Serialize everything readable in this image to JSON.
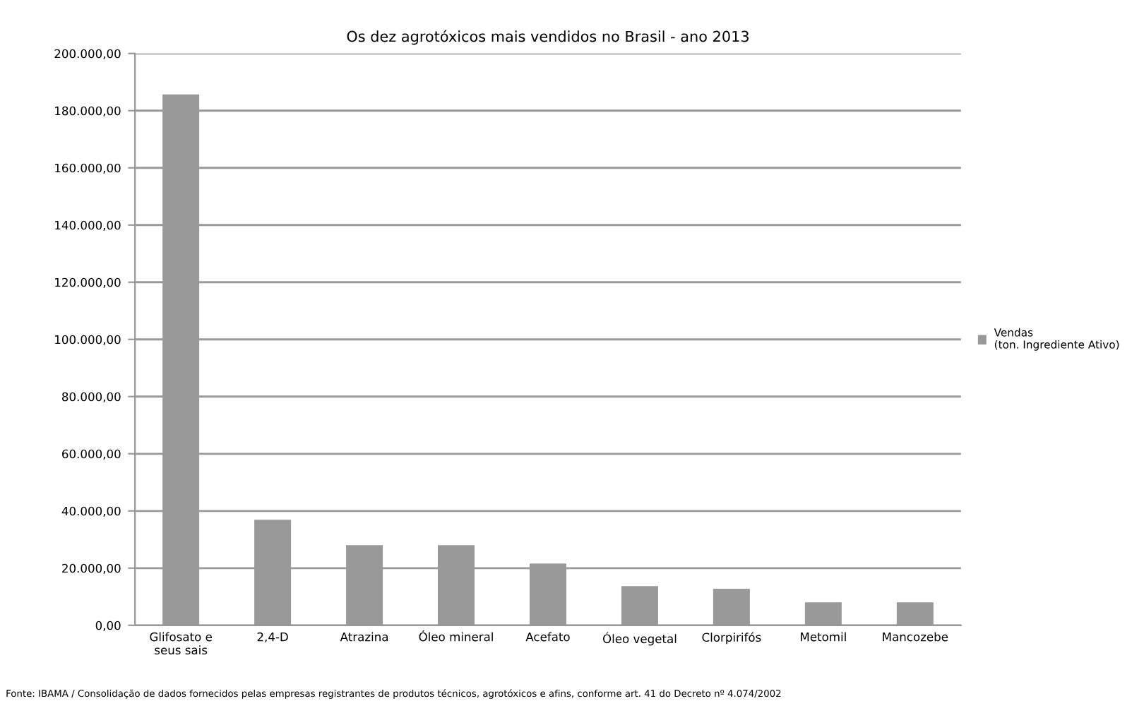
{
  "chart_data": {
    "type": "bar",
    "title": "Os dez agrotóxicos mais vendidos no Brasil - ano 2013",
    "categories": [
      "Glifosato e\nseus sais",
      "2,4-D",
      "Atrazina",
      "Óleo mineral",
      "Acefato",
      "Óleo vegetal",
      "Clorpirifós",
      "Metomil",
      "Mancozebe"
    ],
    "series": [
      {
        "name": "Vendas\n(ton. Ingrediente Ativo)",
        "color": "#999999",
        "values": [
          185700,
          36900,
          28000,
          28000,
          21600,
          13700,
          12800,
          8000,
          8000
        ]
      }
    ],
    "ylim": [
      0,
      200000
    ],
    "yticks": [
      {
        "value": 0,
        "label": "0,00"
      },
      {
        "value": 20000,
        "label": "20.000,00"
      },
      {
        "value": 40000,
        "label": "40.000,00"
      },
      {
        "value": 60000,
        "label": "60.000,00"
      },
      {
        "value": 80000,
        "label": "80.000,00"
      },
      {
        "value": 100000,
        "label": "100.000,00"
      },
      {
        "value": 120000,
        "label": "120.000,00"
      },
      {
        "value": 140000,
        "label": "140.000,00"
      },
      {
        "value": 160000,
        "label": "160.000,00"
      },
      {
        "value": 180000,
        "label": "180.000,00"
      },
      {
        "value": 200000,
        "label": "200.000,00"
      }
    ],
    "grid": "y",
    "legend": "right",
    "annotations": [
      "Fonte: IBAMA / Consolidação de dados fornecidos pelas empresas registrantes de produtos técnicos, agrotóxicos e afins, conforme art. 41 do Decreto nº 4.074/2002"
    ]
  }
}
